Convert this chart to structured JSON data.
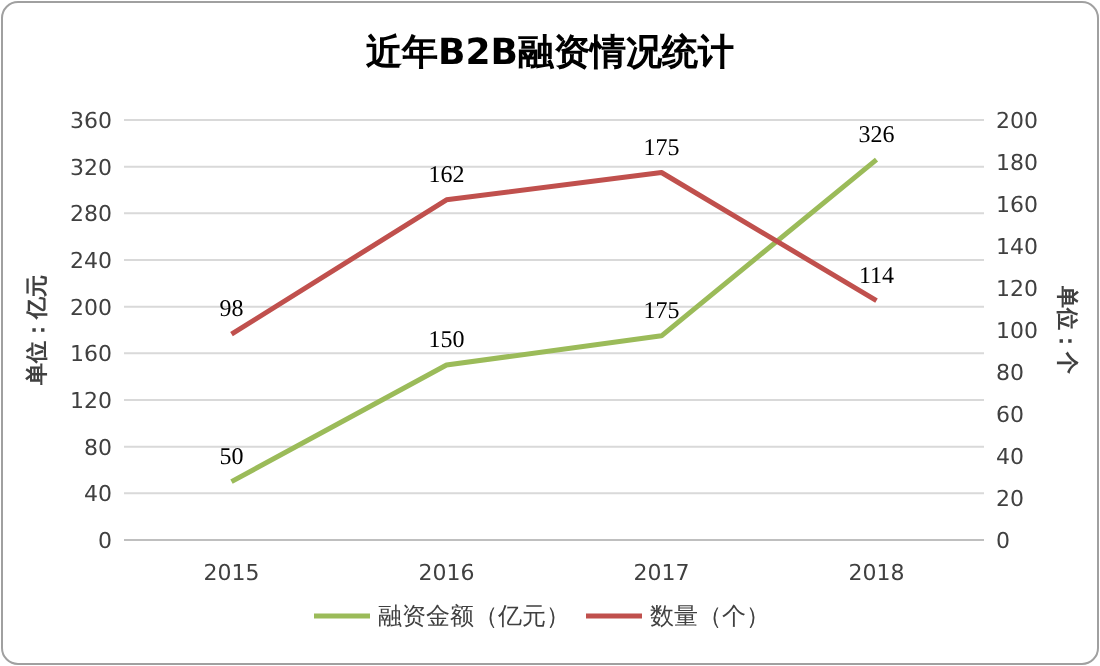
{
  "chart_data": {
    "type": "line",
    "title": "近年B2B融资情况统计",
    "ylabel": "单位：亿元",
    "y2label": "单位：个",
    "categories": [
      "2015",
      "2016",
      "2017",
      "2018"
    ],
    "series": [
      {
        "name": "融资金额（亿元）",
        "color": "#9bbb59",
        "values": [
          50,
          150,
          175,
          326
        ]
      },
      {
        "name": "数量（个）",
        "color": "#c0504d",
        "values": [
          98,
          162,
          175,
          114
        ],
        "axis": "y2"
      }
    ],
    "ylim": [
      0,
      360
    ],
    "yticks": [
      0,
      40,
      80,
      120,
      160,
      200,
      240,
      280,
      320,
      360
    ],
    "y2lim": [
      0,
      200
    ],
    "y2ticks": [
      0,
      20,
      40,
      60,
      80,
      100,
      120,
      140,
      160,
      180,
      200
    ],
    "grid": "y",
    "legend": "bottom",
    "data_labels": true,
    "marker": "none",
    "line_style": "solid"
  }
}
